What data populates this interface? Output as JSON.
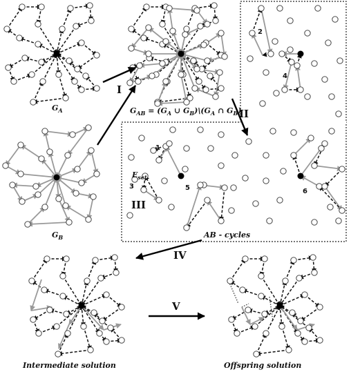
{
  "labels": {
    "ga": "G",
    "ga_sub": "A",
    "gb": "G",
    "gb_sub": "B",
    "gab_formula_main": "G",
    "gab_formula_sub": "AB",
    "gab_formula_rest": " = (G",
    "gab_formula_rest_sub_a": "A",
    "gab_formula_cup": " ∪ G",
    "gab_formula_sub_b": "B",
    "gab_formula_setminus": ")\\(G",
    "gab_formula_sub_a2": "A",
    "gab_formula_cap": " ∩ G",
    "gab_formula_sub_b2": "B",
    "gab_formula_close": ")",
    "ab_cycles": "AB - cycles",
    "eset_main": "E",
    "eset_sub": "set",
    "intermediate": "Intermediate solution",
    "offspring": "Offspring solution"
  },
  "steps": {
    "I": "I",
    "II": "II",
    "III": "III",
    "IV": "IV",
    "V": "V"
  },
  "cycle_numbers": [
    "1",
    "2",
    "3",
    "4",
    "5",
    "6"
  ],
  "colors": {
    "edge_a": "#111111",
    "edge_b": "#999999",
    "node_fill": "#ffffff",
    "depot": "#000000"
  }
}
